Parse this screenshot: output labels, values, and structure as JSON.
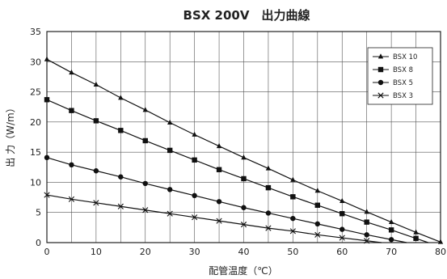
{
  "chart_data": {
    "type": "line",
    "title": "BSX 200V　出力曲線",
    "xlabel": "配管温度（℃）",
    "ylabel": "出 力（W/m）",
    "xlim": [
      0,
      80
    ],
    "ylim": [
      0,
      35
    ],
    "xticks": [
      "0",
      "10",
      "20",
      "30",
      "40",
      "50",
      "60",
      "70",
      "80"
    ],
    "yticks": [
      "0",
      "5",
      "10",
      "15",
      "20",
      "25",
      "30",
      "35"
    ],
    "grid": true,
    "legend_position": "top-right",
    "series": [
      {
        "name": "BSX 10",
        "marker": "triangle",
        "x": [
          0,
          5,
          10,
          15,
          20,
          25,
          30,
          35,
          40,
          45,
          50,
          55,
          60,
          65,
          70,
          75,
          80
        ],
        "y": [
          30.4,
          28.2,
          26.2,
          24.0,
          22.0,
          19.9,
          17.9,
          16.0,
          14.1,
          12.3,
          10.4,
          8.6,
          6.9,
          5.1,
          3.4,
          1.7,
          0.1
        ]
      },
      {
        "name": "BSX 8",
        "marker": "square",
        "x": [
          0,
          5,
          10,
          15,
          20,
          25,
          30,
          35,
          40,
          45,
          50,
          55,
          60,
          65,
          70,
          75
        ],
        "y": [
          23.7,
          21.9,
          20.2,
          18.6,
          16.9,
          15.3,
          13.7,
          12.1,
          10.6,
          9.1,
          7.6,
          6.2,
          4.8,
          3.4,
          2.1,
          0.7
        ]
      },
      {
        "name": "BSX 5",
        "marker": "circle",
        "x": [
          0,
          5,
          10,
          15,
          20,
          25,
          30,
          35,
          40,
          45,
          50,
          55,
          60,
          65,
          70
        ],
        "y": [
          14.1,
          12.9,
          11.9,
          10.9,
          9.8,
          8.8,
          7.8,
          6.8,
          5.8,
          4.9,
          4.0,
          3.1,
          2.2,
          1.3,
          0.5
        ]
      },
      {
        "name": "BSX 3",
        "marker": "x",
        "x": [
          0,
          5,
          10,
          15,
          20,
          25,
          30,
          35,
          40,
          45,
          50,
          55,
          60,
          65
        ],
        "y": [
          7.9,
          7.2,
          6.6,
          6.0,
          5.4,
          4.8,
          4.2,
          3.6,
          3.0,
          2.4,
          1.9,
          1.3,
          0.8,
          0.3
        ]
      }
    ]
  }
}
